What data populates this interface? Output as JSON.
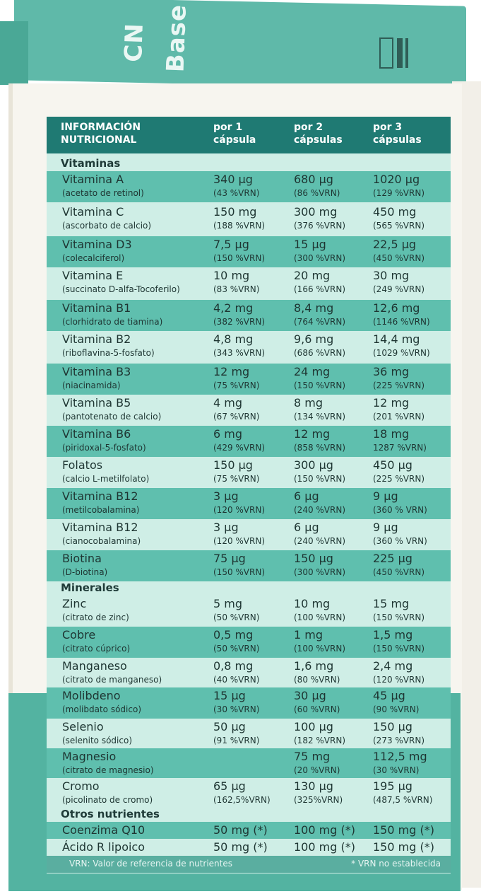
{
  "brand": "CN Base",
  "header": {
    "c0": "INFORMACIÓN\nNUTRICIONAL",
    "c1": "por 1\ncápsula",
    "c2": "por 2\ncápsulas",
    "c3": "por 3\ncápsulas"
  },
  "sections": {
    "vitaminas": "Vitaminas",
    "minerales": "Minerales",
    "otros": "Otros nutrientes"
  },
  "rows": [
    {
      "name": "Vitamina A",
      "sub": "(acetato de retinol)",
      "v1": "340 µg",
      "r1": "(43 %VRN)",
      "v2": "680 µg",
      "r2": "(86 %VRN)",
      "v3": "1020 µg",
      "r3": "(129 %VRN)"
    },
    {
      "name": "Vitamina C",
      "sub": "(ascorbato de calcio)",
      "v1": "150 mg",
      "r1": "(188 %VRN)",
      "v2": "300 mg",
      "r2": "(376 %VRN)",
      "v3": "450 mg",
      "r3": "(565 %VRN)"
    },
    {
      "name": "Vitamina D3",
      "sub": "(colecalciferol)",
      "v1": "7,5 µg",
      "r1": "(150 %VRN)",
      "v2": "15 µg",
      "r2": "(300 %VRN)",
      "v3": "22,5 µg",
      "r3": "(450 %VRN)"
    },
    {
      "name": "Vitamina E",
      "sub": "(succinato D-alfa-Tocoferilo)",
      "v1": "10 mg",
      "r1": "(83 %VRN)",
      "v2": "20 mg",
      "r2": "(166 %VRN)",
      "v3": "30 mg",
      "r3": "(249 %VRN)"
    },
    {
      "name": "Vitamina B1",
      "sub": "(clorhidrato de tiamina)",
      "v1": "4,2 mg",
      "r1": "(382 %VRN)",
      "v2": "8,4 mg",
      "r2": "(764 %VRN)",
      "v3": "12,6 mg",
      "r3": "(1146 %VRN)"
    },
    {
      "name": "Vitamina B2",
      "sub": "(riboflavina-5-fosfato)",
      "v1": "4,8 mg",
      "r1": "(343 %VRN)",
      "v2": "9,6 mg",
      "r2": "(686 %VRN)",
      "v3": "14,4 mg",
      "r3": "(1029 %VRN)"
    },
    {
      "name": "Vitamina B3",
      "sub": "(niacinamida)",
      "v1": "12 mg",
      "r1": "(75 %VRN)",
      "v2": "24 mg",
      "r2": "(150 %VRN)",
      "v3": "36 mg",
      "r3": "(225 %VRN)"
    },
    {
      "name": "Vitamina B5",
      "sub": "(pantotenato de calcio)",
      "v1": "4 mg",
      "r1": "(67 %VRN)",
      "v2": "8 mg",
      "r2": "(134 %VRN)",
      "v3": "12 mg",
      "r3": "(201 %VRN)"
    },
    {
      "name": "Vitamina B6",
      "sub": "(piridoxal-5-fosfato)",
      "v1": "6 mg",
      "r1": "(429 %VRN)",
      "v2": "12 mg",
      "r2": "(858 %VRN)",
      "v3": "18 mg",
      "r3": "1287 %VRN)"
    },
    {
      "name": "Folatos",
      "sub": "(calcio L-metilfolato)",
      "v1": "150 µg",
      "r1": "(75 %VRN)",
      "v2": "300 µg",
      "r2": "(150 %VRN)",
      "v3": "450 µg",
      "r3": "(225 %VRN)"
    },
    {
      "name": "Vitamina B12",
      "sub": "(metilcobalamina)",
      "v1": "3 µg",
      "r1": "(120 %VRN)",
      "v2": "6 µg",
      "r2": "(240 %VRN)",
      "v3": "9 µg",
      "r3": "(360 % VRN)"
    },
    {
      "name": "Vitamina B12",
      "sub": "(cianocobalamina)",
      "v1": "3 µg",
      "r1": "(120 %VRN)",
      "v2": "6 µg",
      "r2": "(240 %VRN)",
      "v3": "9 µg",
      "r3": "(360 % VRN)"
    },
    {
      "name": "Biotina",
      "sub": "(D-biotina)",
      "v1": "75 µg",
      "r1": "(150 %VRN)",
      "v2": "150 µg",
      "r2": "(300 %VRN)",
      "v3": "225 µg",
      "r3": "(450 %VRN)"
    },
    {
      "name": "Zinc",
      "sub": "(citrato de zinc)",
      "v1": "5 mg",
      "r1": "(50 %VRN)",
      "v2": "10 mg",
      "r2": "(100 %VRN)",
      "v3": "15 mg",
      "r3": "(150 %VRN)"
    },
    {
      "name": "Cobre",
      "sub": "(citrato cúprico)",
      "v1": "0,5 mg",
      "r1": "(50 %VRN)",
      "v2": "1 mg",
      "r2": "(100 %VRN)",
      "v3": "1,5 mg",
      "r3": "(150 %VRN)"
    },
    {
      "name": "Manganeso",
      "sub": "(citrato de manganeso)",
      "v1": "0,8 mg",
      "r1": "(40 %VRN)",
      "v2": "1,6 mg",
      "r2": "(80 %VRN)",
      "v3": "2,4 mg",
      "r3": "(120 %VRN)"
    },
    {
      "name": "Molibdeno",
      "sub": "(molibdato sódico)",
      "v1": "15 µg",
      "r1": "(30 %VRN)",
      "v2": "30 µg",
      "r2": "(60 %VRN)",
      "v3": "45 µg",
      "r3": "(90 %VRN)"
    },
    {
      "name": "Selenio",
      "sub": "(selenito sódico)",
      "v1": "50 µg",
      "r1": "(91 %VRN)",
      "v2": "100 µg",
      "r2": "(182 %VRN)",
      "v3": "150 µg",
      "r3": "(273 %VRN)"
    },
    {
      "name": "Magnesio",
      "sub": "(citrato de magnesio)",
      "v1": "",
      "r1": "",
      "v2": "75 mg",
      "r2": "(20 %VRN)",
      "v3": "112,5 mg",
      "r3": "(30 %VRN)"
    },
    {
      "name": "Cromo",
      "sub": "(picolinato de cromo)",
      "v1": "65 µg",
      "r1": "(162,5%VRN)",
      "v2": "130 µg",
      "r2": "(325%VRN)",
      "v3": "195 µg",
      "r3": "(487,5 %VRN)"
    },
    {
      "name": "Coenzima Q10",
      "sub": "",
      "v1": "50 mg (*)",
      "r1": "",
      "v2": "100 mg (*)",
      "r2": "",
      "v3": "150 mg (*)",
      "r3": ""
    },
    {
      "name": "Ácido R lipoico",
      "sub": "",
      "v1": "50 mg (*)",
      "r1": "",
      "v2": "100 mg (*)",
      "r2": "",
      "v3": "150 mg (*)",
      "r3": ""
    }
  ],
  "footer": {
    "left": "VRN: Valor de referencia de nutrientes",
    "right": "* VRN no establecida"
  },
  "colors": {
    "header_bg": "#1f7a73",
    "row_dark": "#5fbfae",
    "row_light": "#cfeee6",
    "box_teal": "#53b3a1"
  }
}
